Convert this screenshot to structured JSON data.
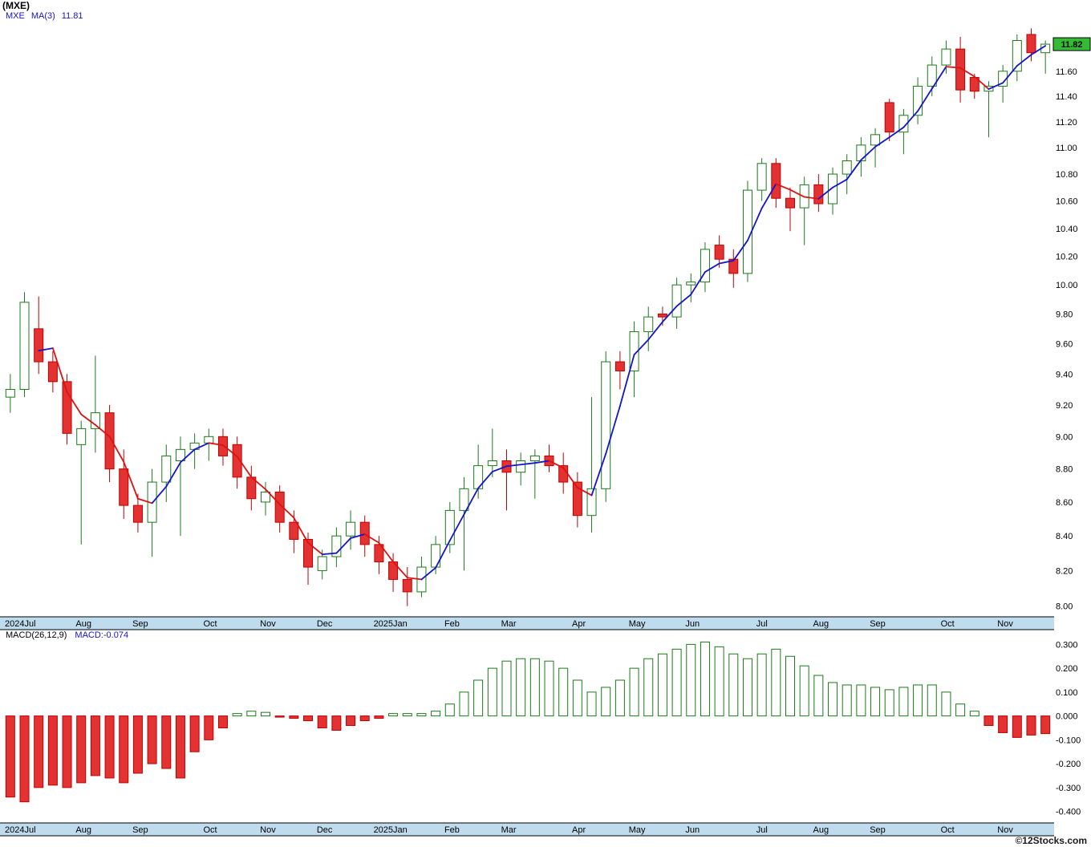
{
  "title": "(MXE)",
  "legend": {
    "symbol": "MXE",
    "ma_label": "MA(3)",
    "ma_value": "11.81"
  },
  "macd_legend": {
    "label": "MACD(26,12,9)",
    "value": "MACD:-0.074"
  },
  "last_price_label": "11.82",
  "watermark": "©12Stocks.com",
  "colors": {
    "up_fill": "#ffffff",
    "up_border": "#1b7a1b",
    "down_fill": "#e23232",
    "down_border": "#c00000",
    "ma_up": "#1414cc",
    "ma_down": "#dd1111",
    "axis_strip": "#bfdbee",
    "last_price_bg": "#33bb33",
    "legend_blue": "#1414cc"
  },
  "chart_data": {
    "type": "candlestick",
    "title": "(MXE)",
    "ma_period": 3,
    "price_axis": {
      "scale": "log",
      "ticks": [
        11.6,
        11.4,
        11.2,
        11.0,
        10.8,
        10.6,
        10.4,
        10.2,
        10.0,
        9.8,
        9.6,
        9.4,
        9.2,
        9.0,
        8.8,
        8.6,
        8.4,
        8.2,
        8.0
      ],
      "last_price": 11.82
    },
    "x_axis": {
      "labels": [
        {
          "label": "2024Jul",
          "index": 0
        },
        {
          "label": "Aug",
          "index": 5
        },
        {
          "label": "Sep",
          "index": 9
        },
        {
          "label": "Oct",
          "index": 14
        },
        {
          "label": "Nov",
          "index": 18
        },
        {
          "label": "Dec",
          "index": 22
        },
        {
          "label": "2025Jan",
          "index": 26
        },
        {
          "label": "Feb",
          "index": 31
        },
        {
          "label": "Mar",
          "index": 35
        },
        {
          "label": "Apr",
          "index": 40
        },
        {
          "label": "May",
          "index": 44
        },
        {
          "label": "Jun",
          "index": 48
        },
        {
          "label": "Jul",
          "index": 53
        },
        {
          "label": "Aug",
          "index": 57
        },
        {
          "label": "Sep",
          "index": 61
        },
        {
          "label": "Oct",
          "index": 66
        },
        {
          "label": "Nov",
          "index": 70
        }
      ]
    },
    "candles": [
      [
        9.25,
        9.4,
        9.15,
        9.3
      ],
      [
        9.3,
        9.95,
        9.25,
        9.88
      ],
      [
        9.7,
        9.92,
        9.4,
        9.48
      ],
      [
        9.48,
        9.55,
        9.28,
        9.35
      ],
      [
        9.35,
        9.4,
        8.95,
        9.02
      ],
      [
        8.95,
        9.1,
        8.35,
        9.05
      ],
      [
        9.05,
        9.52,
        8.9,
        9.15
      ],
      [
        9.15,
        9.2,
        8.72,
        8.8
      ],
      [
        8.8,
        8.92,
        8.5,
        8.58
      ],
      [
        8.58,
        8.65,
        8.42,
        8.48
      ],
      [
        8.48,
        8.8,
        8.28,
        8.72
      ],
      [
        8.72,
        8.95,
        8.6,
        8.88
      ],
      [
        8.85,
        9.0,
        8.4,
        8.92
      ],
      [
        8.92,
        9.02,
        8.8,
        8.96
      ],
      [
        8.96,
        9.05,
        8.85,
        9.0
      ],
      [
        9.0,
        9.05,
        8.82,
        8.88
      ],
      [
        8.95,
        9.0,
        8.68,
        8.75
      ],
      [
        8.75,
        8.82,
        8.55,
        8.62
      ],
      [
        8.6,
        8.72,
        8.52,
        8.66
      ],
      [
        8.66,
        8.7,
        8.42,
        8.48
      ],
      [
        8.48,
        8.55,
        8.3,
        8.38
      ],
      [
        8.38,
        8.42,
        8.12,
        8.22
      ],
      [
        8.2,
        8.32,
        8.15,
        8.28
      ],
      [
        8.28,
        8.45,
        8.22,
        8.4
      ],
      [
        8.4,
        8.55,
        8.32,
        8.48
      ],
      [
        8.48,
        8.52,
        8.28,
        8.35
      ],
      [
        8.35,
        8.4,
        8.18,
        8.25
      ],
      [
        8.25,
        8.3,
        8.08,
        8.15
      ],
      [
        8.15,
        8.22,
        8.0,
        8.08
      ],
      [
        8.08,
        8.28,
        8.05,
        8.22
      ],
      [
        8.22,
        8.4,
        8.18,
        8.35
      ],
      [
        8.35,
        8.6,
        8.3,
        8.55
      ],
      [
        8.55,
        8.75,
        8.2,
        8.68
      ],
      [
        8.68,
        8.95,
        8.62,
        8.82
      ],
      [
        8.82,
        9.05,
        8.75,
        8.85
      ],
      [
        8.85,
        8.92,
        8.55,
        8.78
      ],
      [
        8.78,
        8.9,
        8.7,
        8.85
      ],
      [
        8.85,
        8.92,
        8.62,
        8.88
      ],
      [
        8.88,
        8.95,
        8.78,
        8.82
      ],
      [
        8.82,
        8.9,
        8.65,
        8.72
      ],
      [
        8.72,
        8.78,
        8.45,
        8.52
      ],
      [
        8.52,
        9.25,
        8.42,
        8.68
      ],
      [
        8.68,
        9.55,
        8.6,
        9.48
      ],
      [
        9.48,
        9.55,
        9.3,
        9.42
      ],
      [
        9.42,
        9.75,
        9.25,
        9.68
      ],
      [
        9.68,
        9.85,
        9.55,
        9.78
      ],
      [
        9.8,
        9.85,
        9.72,
        9.78
      ],
      [
        9.78,
        10.05,
        9.7,
        10.0
      ],
      [
        10.0,
        10.08,
        9.88,
        10.02
      ],
      [
        10.02,
        10.3,
        9.95,
        10.25
      ],
      [
        10.28,
        10.35,
        10.12,
        10.18
      ],
      [
        10.18,
        10.25,
        9.98,
        10.08
      ],
      [
        10.08,
        10.75,
        10.02,
        10.68
      ],
      [
        10.68,
        10.92,
        10.6,
        10.88
      ],
      [
        10.88,
        10.92,
        10.55,
        10.62
      ],
      [
        10.62,
        10.7,
        10.38,
        10.55
      ],
      [
        10.55,
        10.78,
        10.28,
        10.72
      ],
      [
        10.72,
        10.8,
        10.52,
        10.58
      ],
      [
        10.58,
        10.85,
        10.5,
        10.8
      ],
      [
        10.8,
        10.95,
        10.65,
        10.9
      ],
      [
        10.9,
        11.08,
        10.78,
        11.02
      ],
      [
        11.02,
        11.15,
        10.85,
        11.1
      ],
      [
        11.35,
        11.38,
        11.05,
        11.12
      ],
      [
        11.12,
        11.3,
        10.95,
        11.25
      ],
      [
        11.25,
        11.55,
        11.18,
        11.48
      ],
      [
        11.48,
        11.72,
        11.4,
        11.65
      ],
      [
        11.65,
        11.85,
        11.58,
        11.78
      ],
      [
        11.78,
        11.88,
        11.35,
        11.45
      ],
      [
        11.55,
        11.58,
        11.38,
        11.44
      ],
      [
        11.44,
        11.52,
        11.08,
        11.48
      ],
      [
        11.48,
        11.65,
        11.35,
        11.6
      ],
      [
        11.6,
        11.9,
        11.52,
        11.85
      ],
      [
        11.9,
        11.95,
        11.68,
        11.75
      ],
      [
        11.75,
        11.85,
        11.58,
        11.82
      ]
    ],
    "macd": {
      "params": "26,12,9",
      "last": -0.074,
      "axis_ticks": [
        0.3,
        0.2,
        0.1,
        0.0,
        -0.1,
        -0.2,
        -0.3,
        -0.4
      ],
      "values": [
        -0.34,
        -0.36,
        -0.3,
        -0.29,
        -0.3,
        -0.28,
        -0.25,
        -0.26,
        -0.28,
        -0.24,
        -0.2,
        -0.22,
        -0.26,
        -0.15,
        -0.1,
        -0.05,
        0.01,
        0.02,
        0.015,
        -0.005,
        -0.01,
        -0.02,
        -0.05,
        -0.06,
        -0.04,
        -0.02,
        -0.01,
        0.01,
        0.01,
        0.01,
        0.02,
        0.05,
        0.1,
        0.15,
        0.2,
        0.23,
        0.24,
        0.24,
        0.23,
        0.2,
        0.15,
        0.1,
        0.12,
        0.15,
        0.2,
        0.24,
        0.26,
        0.28,
        0.3,
        0.31,
        0.29,
        0.26,
        0.24,
        0.26,
        0.28,
        0.25,
        0.21,
        0.17,
        0.14,
        0.13,
        0.13,
        0.12,
        0.11,
        0.12,
        0.13,
        0.13,
        0.1,
        0.05,
        0.02,
        -0.04,
        -0.07,
        -0.09,
        -0.08,
        -0.074
      ]
    }
  }
}
